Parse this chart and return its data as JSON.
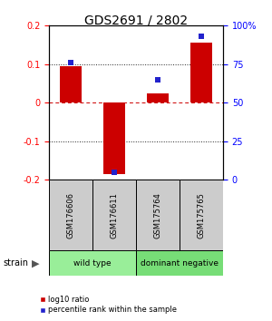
{
  "title": "GDS2691 / 2802",
  "samples": [
    "GSM176606",
    "GSM176611",
    "GSM175764",
    "GSM175765"
  ],
  "log10_ratio": [
    0.095,
    -0.185,
    0.025,
    0.155
  ],
  "percentile_rank": [
    76,
    5,
    65,
    93
  ],
  "ylim_left": [
    -0.2,
    0.2
  ],
  "ylim_right": [
    0,
    100
  ],
  "yticks_left": [
    -0.2,
    -0.1,
    0.0,
    0.1,
    0.2
  ],
  "yticks_right": [
    0,
    25,
    50,
    75,
    100
  ],
  "hlines_dotted": [
    -0.1,
    0.1
  ],
  "hline_dashed": 0.0,
  "bar_color": "#cc0000",
  "dot_color": "#2222cc",
  "zero_line_color": "#cc0000",
  "dotted_line_color": "#222222",
  "groups": [
    {
      "label": "wild type",
      "samples": [
        0,
        1
      ],
      "color": "#99ee99"
    },
    {
      "label": "dominant negative",
      "samples": [
        2,
        3
      ],
      "color": "#77dd77"
    }
  ],
  "sample_box_color": "#cccccc",
  "strain_label": "strain",
  "legend_red_label": "log10 ratio",
  "legend_blue_label": "percentile rank within the sample",
  "background_color": "#ffffff"
}
